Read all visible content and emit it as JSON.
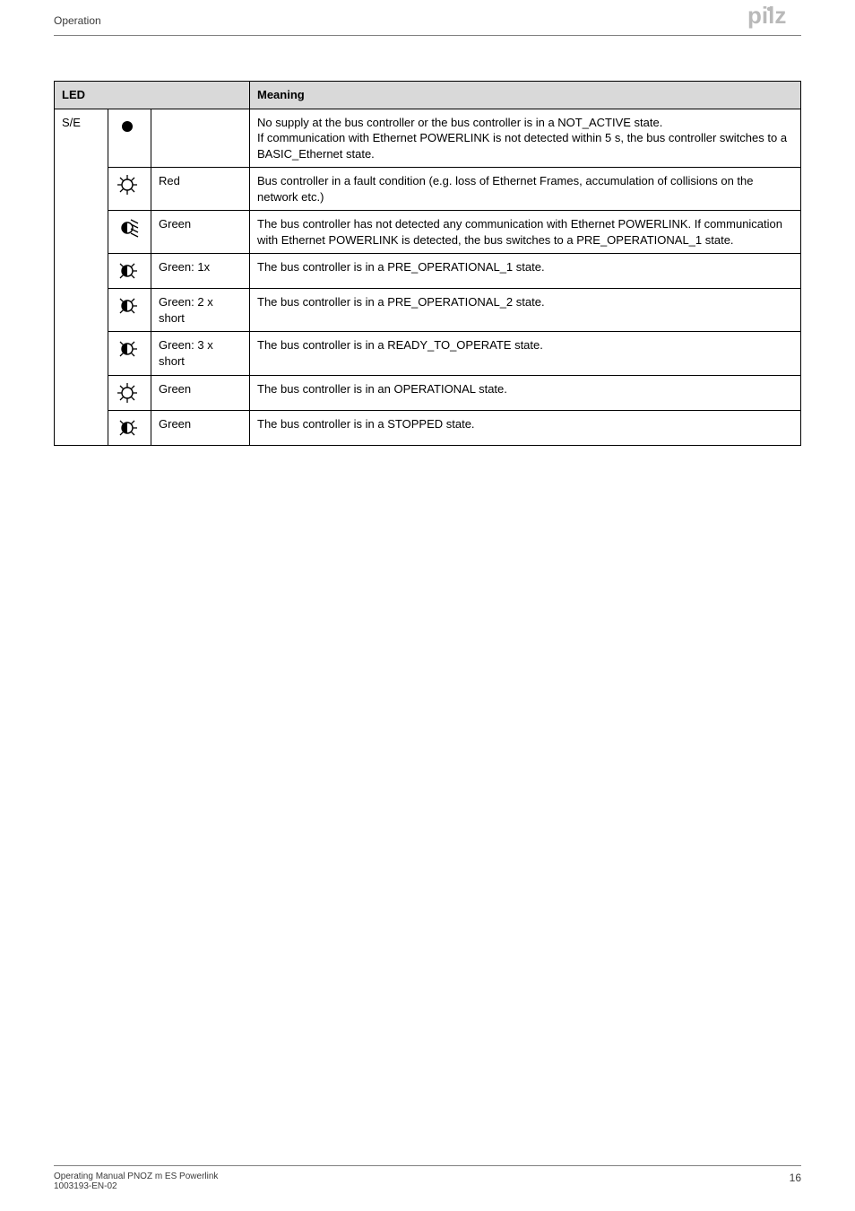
{
  "header": {
    "section": "Operation",
    "logo_text": "pilz",
    "logo_color": "#b9b9b9"
  },
  "table": {
    "headers": {
      "led": "LED",
      "meaning": "Meaning"
    },
    "led_label": "S/E",
    "rows": [
      {
        "icon": "solid-dot",
        "color": "",
        "meaning": "No supply at the bus controller or the bus controller is in a NOT_ACTIVE state.\nIf communication with Ethernet POWERLINK is not detected within 5 s, the bus controller switches to a BASIC_Ethernet state."
      },
      {
        "icon": "open-star",
        "color": "Red",
        "meaning": "Bus controller in a fault condition (e.g. loss of Ethernet Frames, accumulation of collisions on the network etc.)"
      },
      {
        "icon": "half-multi",
        "color": "Green",
        "meaning": "The bus controller has not detected any communication with Ethernet POWERLINK. If communication with Ethernet POWERLINK is detected, the bus switches to a PRE_OPERATIONAL_1 state."
      },
      {
        "icon": "half-star",
        "color": "Green: 1x",
        "meaning": "The bus controller is in a PRE_OPERATIONAL_1 state."
      },
      {
        "icon": "half-star",
        "color": "Green: 2 x short",
        "meaning": "The bus controller is in a PRE_OPERATIONAL_2 state."
      },
      {
        "icon": "half-star",
        "color": "Green: 3 x short",
        "meaning": "The bus controller is in a READY_TO_OPERATE state."
      },
      {
        "icon": "open-star",
        "color": "Green",
        "meaning": "The bus controller is in an OPERATIONAL state."
      },
      {
        "icon": "half-star",
        "color": "Green",
        "meaning": "The bus controller is in a STOPPED state."
      }
    ]
  },
  "footer": {
    "line1": "Operating Manual PNOZ m ES Powerlink",
    "line2": "1003193-EN-02",
    "page": "16"
  },
  "icons": {
    "size": 26,
    "stroke": "#000000",
    "fill": "#000000"
  }
}
